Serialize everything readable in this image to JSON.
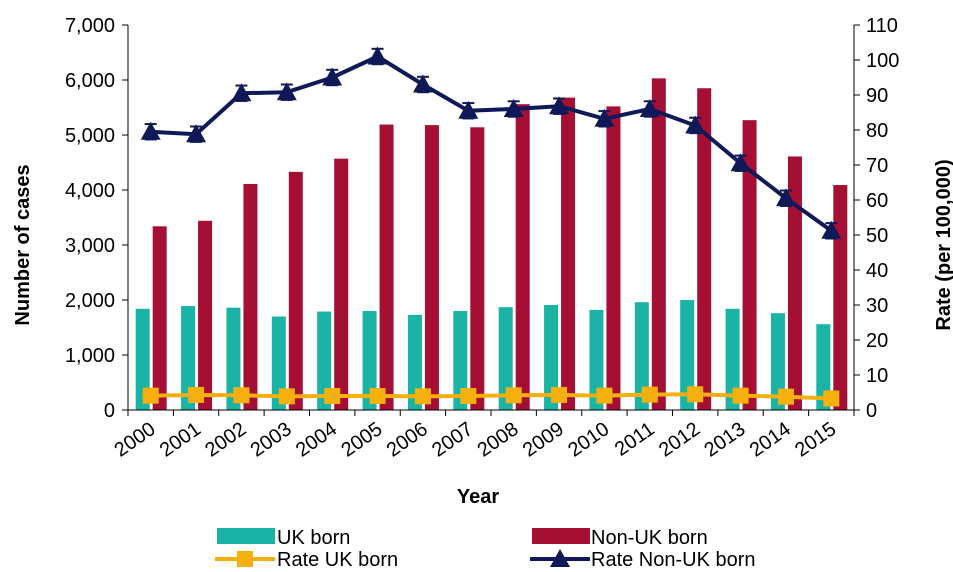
{
  "chart_data": {
    "type": "bar",
    "title": "",
    "xlabel": "Year",
    "ylabel": "Number of cases",
    "y2label": "Rate (per 100,000)",
    "categories": [
      "2000",
      "2001",
      "2002",
      "2003",
      "2004",
      "2005",
      "2006",
      "2007",
      "2008",
      "2009",
      "2010",
      "2011",
      "2012",
      "2013",
      "2014",
      "2015"
    ],
    "ylim": [
      0,
      7000
    ],
    "y2lim": [
      0,
      110
    ],
    "yticks": [
      "0",
      "1,000",
      "2,000",
      "3,000",
      "4,000",
      "5,000",
      "6,000",
      "7,000"
    ],
    "y2ticks": [
      "0",
      "10",
      "20",
      "30",
      "40",
      "50",
      "60",
      "70",
      "80",
      "90",
      "100",
      "110"
    ],
    "grid": false,
    "legend_position": "bottom",
    "series": [
      {
        "name": "UK born",
        "kind": "bar",
        "axis": "left",
        "color": "#1ab3a6",
        "values": [
          1840,
          1890,
          1860,
          1700,
          1790,
          1800,
          1730,
          1800,
          1870,
          1910,
          1820,
          1960,
          2000,
          1840,
          1760,
          1560
        ]
      },
      {
        "name": "Non-UK born",
        "kind": "bar",
        "axis": "left",
        "color": "#a50f34",
        "values": [
          3340,
          3440,
          4110,
          4330,
          4570,
          5190,
          5180,
          5140,
          5560,
          5680,
          5520,
          6030,
          5850,
          5270,
          4610,
          4090
        ]
      },
      {
        "name": "Rate UK born",
        "kind": "line",
        "axis": "right",
        "marker": "square",
        "color": "#f5b00e",
        "values": [
          4.1,
          4.3,
          4.2,
          3.9,
          4.0,
          4.0,
          3.9,
          4.0,
          4.2,
          4.3,
          4.1,
          4.4,
          4.5,
          4.1,
          3.8,
          3.3
        ]
      },
      {
        "name": "Rate Non-UK born",
        "kind": "line",
        "axis": "right",
        "marker": "triangle",
        "color": "#0f1957",
        "values": [
          79.5,
          78.8,
          90.5,
          90.8,
          95.0,
          101.0,
          93.0,
          85.5,
          86.0,
          86.8,
          83.2,
          86.0,
          81.3,
          70.5,
          60.5,
          51.2
        ],
        "error_bar": 2.2
      }
    ]
  }
}
